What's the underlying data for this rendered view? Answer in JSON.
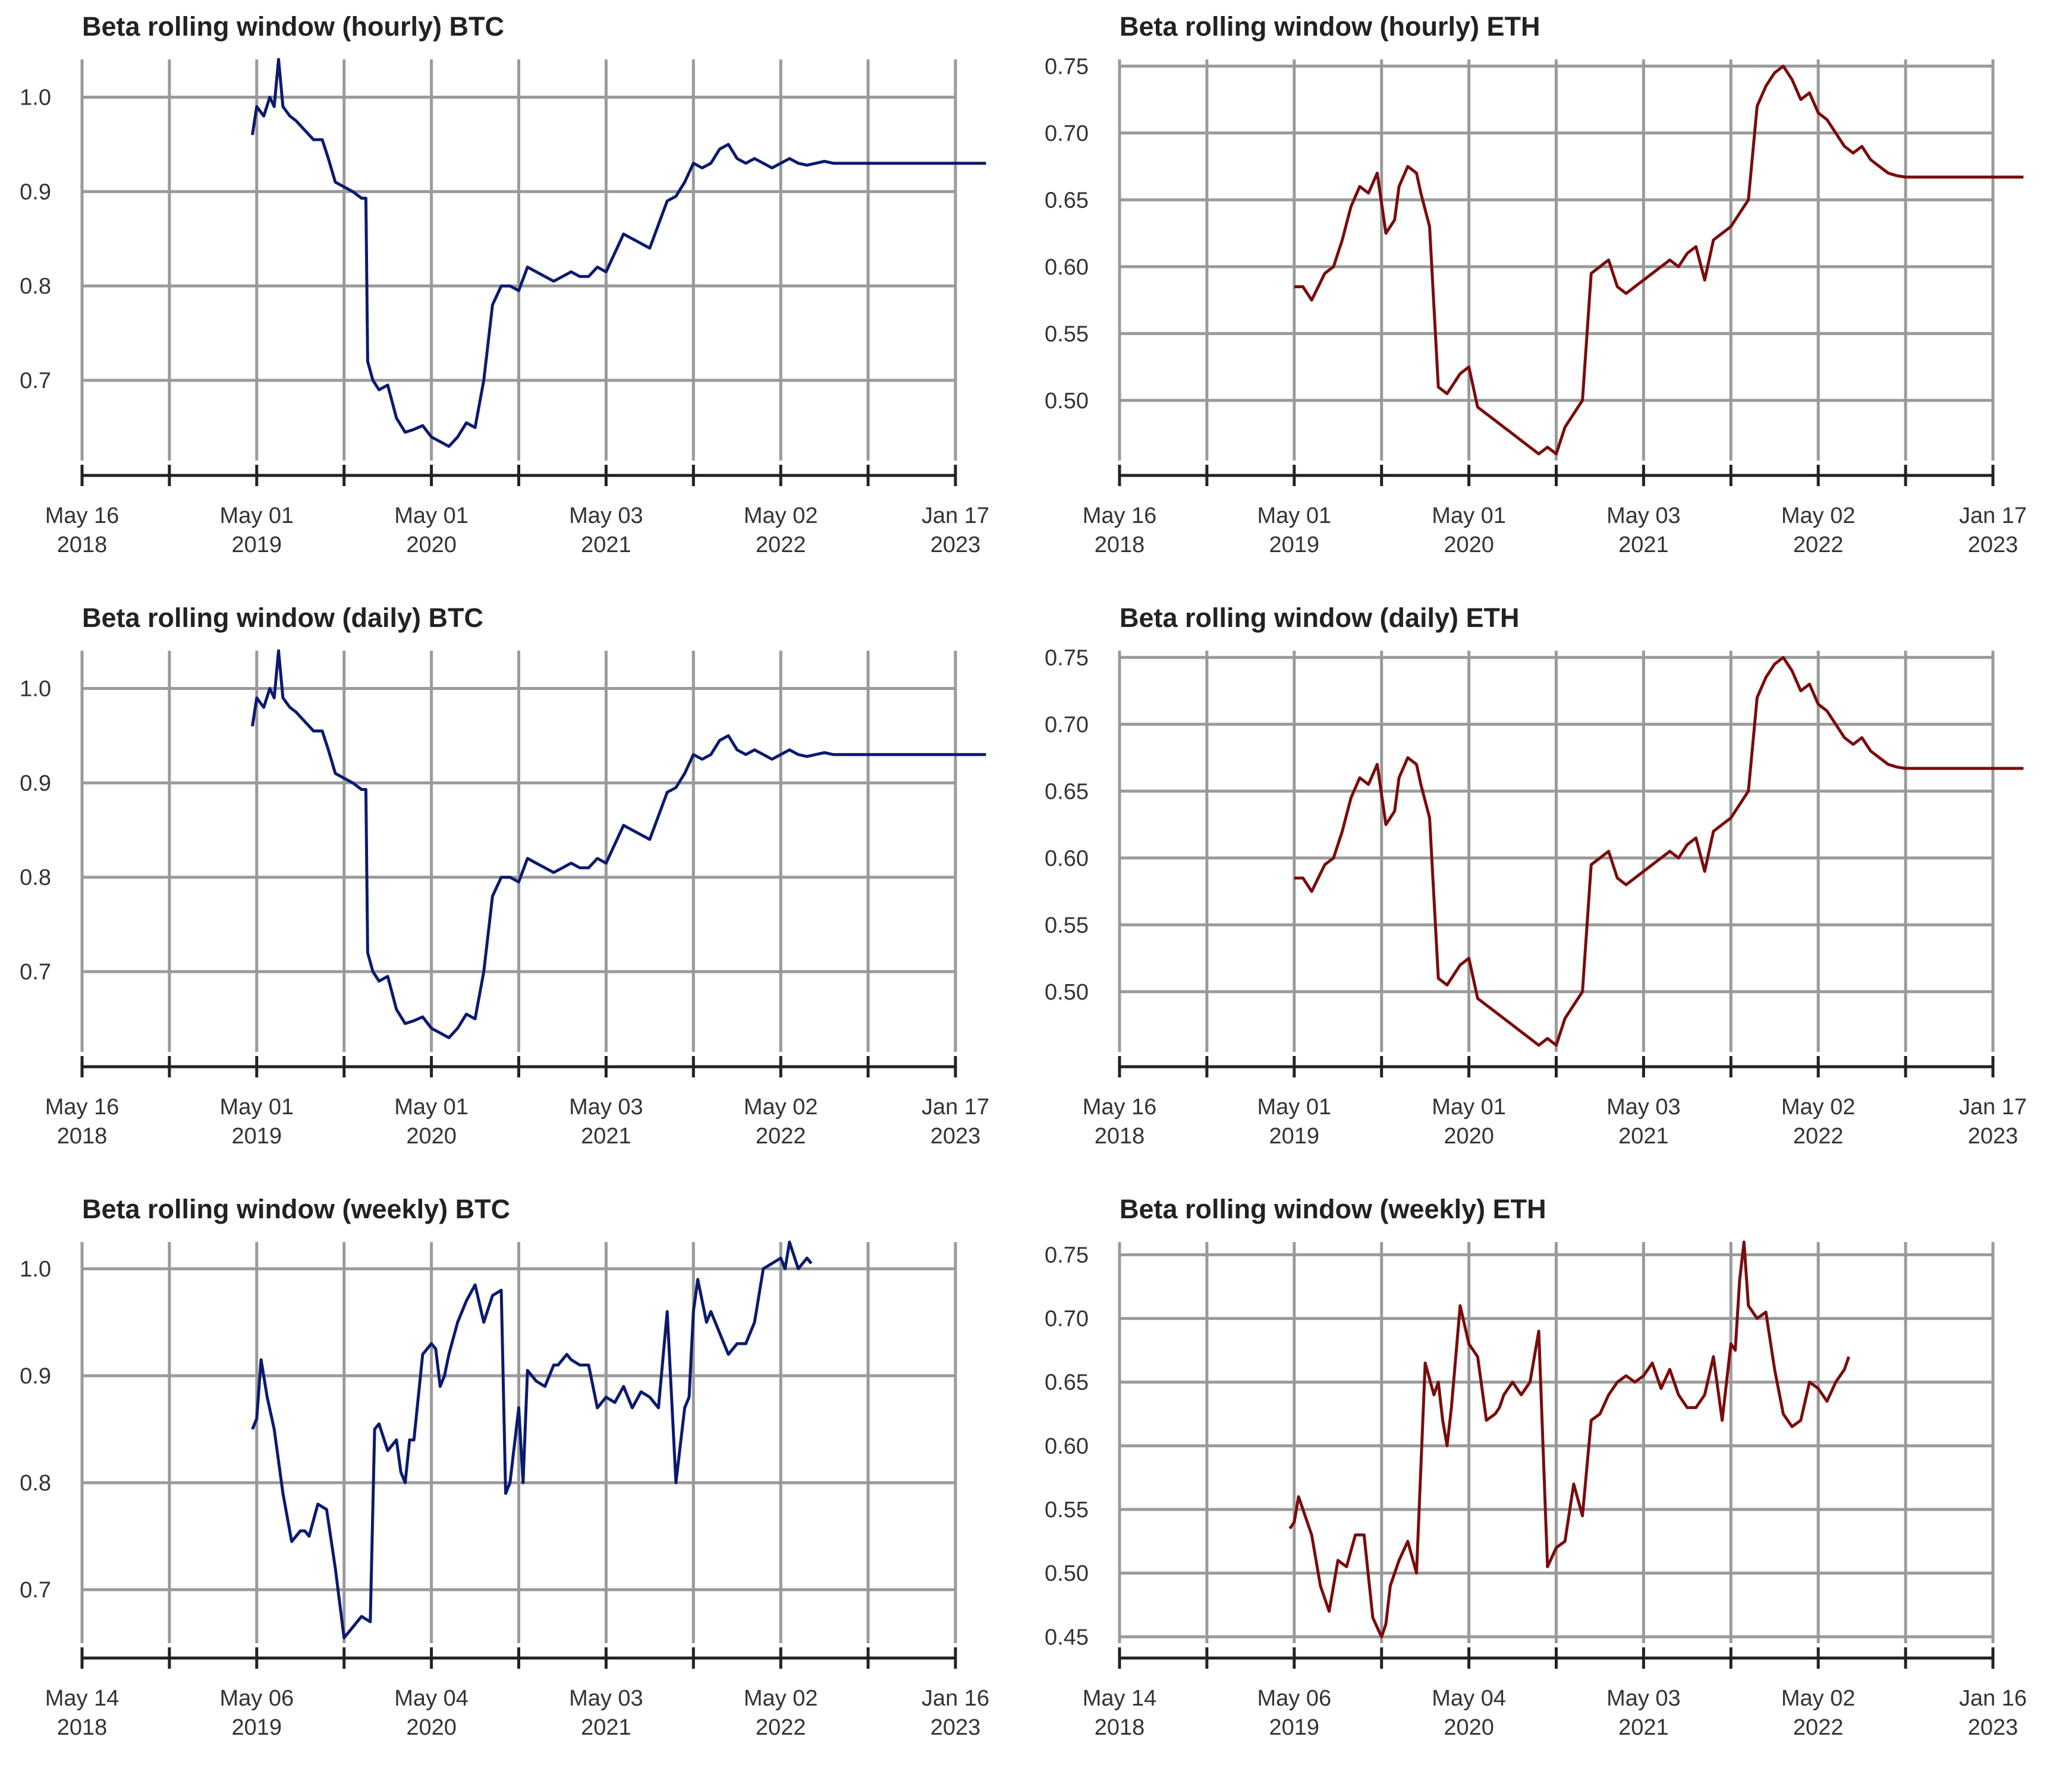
{
  "chart_data": [
    {
      "id": "hourly-btc",
      "type": "line",
      "title": "Beta rolling window (hourly) BTC",
      "color": "#0b1a6e",
      "ylim": [
        0.615,
        1.04
      ],
      "yticks": [
        0.7,
        0.8,
        0.9,
        1.0
      ],
      "ytick_labels": [
        "0.7",
        "0.8",
        "0.9",
        "1.0"
      ],
      "xticks": [
        {
          "label": "May 16",
          "year": "2018"
        },
        {
          "label": "May 01",
          "year": "2019"
        },
        {
          "label": "May 01",
          "year": "2020"
        },
        {
          "label": "May 03",
          "year": "2021"
        },
        {
          "label": "May 02",
          "year": "2022"
        },
        {
          "label": "Jan 17",
          "year": "2023"
        }
      ],
      "x": [
        1.95,
        2.0,
        2.08,
        2.15,
        2.2,
        2.25,
        2.3,
        2.38,
        2.45,
        2.55,
        2.65,
        2.75,
        2.82,
        2.9,
        3.0,
        3.1,
        3.2,
        3.25,
        3.27,
        3.33,
        3.4,
        3.5,
        3.6,
        3.7,
        3.8,
        3.9,
        4.0,
        4.1,
        4.2,
        4.3,
        4.4,
        4.5,
        4.52,
        4.6,
        4.7,
        4.8,
        4.9,
        5.0,
        5.1,
        5.2,
        5.3,
        5.4,
        5.5,
        5.6,
        5.7,
        5.8,
        5.9,
        6.0,
        6.05,
        6.1,
        6.2,
        6.3,
        6.4,
        6.5,
        6.6,
        6.7,
        6.8,
        6.9,
        7.0,
        7.1,
        7.2,
        7.3,
        7.4,
        7.5,
        7.6,
        7.7,
        7.8,
        7.9,
        8.0,
        8.1,
        8.2,
        8.3,
        8.4,
        8.5,
        8.6,
        8.7,
        8.8,
        8.9,
        9.0,
        9.1,
        9.2,
        9.3,
        9.4,
        9.5,
        9.6,
        9.7,
        9.8,
        9.9,
        10.0,
        10.1,
        10.2,
        10.35
      ],
      "y": [
        0.96,
        0.99,
        0.98,
        1.0,
        0.99,
        1.04,
        0.99,
        0.98,
        0.975,
        0.965,
        0.955,
        0.955,
        0.935,
        0.91,
        0.905,
        0.9,
        0.893,
        0.893,
        0.72,
        0.7,
        0.69,
        0.695,
        0.66,
        0.645,
        0.648,
        0.652,
        0.64,
        0.635,
        0.63,
        0.64,
        0.655,
        0.65,
        0.66,
        0.7,
        0.78,
        0.8,
        0.8,
        0.795,
        0.82,
        0.815,
        0.81,
        0.805,
        0.81,
        0.815,
        0.81,
        0.81,
        0.82,
        0.815,
        0.825,
        0.835,
        0.855,
        0.85,
        0.845,
        0.84,
        0.865,
        0.89,
        0.895,
        0.91,
        0.93,
        0.925,
        0.93,
        0.945,
        0.95,
        0.935,
        0.93,
        0.935,
        0.93,
        0.925,
        0.93,
        0.935,
        0.93,
        0.928,
        0.93,
        0.932,
        0.93,
        0.93,
        0.93,
        0.93,
        0.93,
        0.93,
        0.93,
        0.93,
        0.93,
        0.93,
        0.93,
        0.93,
        0.93,
        0.93,
        0.93,
        0.93,
        0.93,
        0.93
      ]
    },
    {
      "id": "hourly-eth",
      "type": "line",
      "title": "Beta rolling window (hourly) ETH",
      "color": "#7a0c0c",
      "ylim": [
        0.455,
        0.755
      ],
      "yticks": [
        0.5,
        0.55,
        0.6,
        0.65,
        0.7,
        0.75
      ],
      "ytick_labels": [
        "0.50",
        "0.55",
        "0.60",
        "0.65",
        "0.70",
        "0.75"
      ],
      "xticks": [
        {
          "label": "May 16",
          "year": "2018"
        },
        {
          "label": "May 01",
          "year": "2019"
        },
        {
          "label": "May 01",
          "year": "2020"
        },
        {
          "label": "May 03",
          "year": "2021"
        },
        {
          "label": "May 02",
          "year": "2022"
        },
        {
          "label": "Jan 17",
          "year": "2023"
        }
      ],
      "x": [
        2.0,
        2.1,
        2.2,
        2.35,
        2.45,
        2.55,
        2.65,
        2.75,
        2.85,
        2.95,
        3.05,
        3.15,
        3.2,
        3.3,
        3.4,
        3.45,
        3.55,
        3.65,
        3.75,
        3.85,
        3.9,
        4.0,
        4.1,
        4.2,
        4.3,
        4.4,
        4.5,
        4.6,
        4.7,
        4.8,
        4.9,
        5.0,
        5.1,
        5.2,
        5.3,
        5.4,
        5.5,
        5.6,
        5.7,
        5.8,
        5.9,
        6.0,
        6.1,
        6.2,
        6.3,
        6.4,
        6.5,
        6.6,
        6.7,
        6.8,
        6.9,
        7.0,
        7.05,
        7.1,
        7.2,
        7.3,
        7.4,
        7.5,
        7.6,
        7.7,
        7.8,
        7.9,
        8.0,
        8.1,
        8.2,
        8.3,
        8.4,
        8.5,
        8.6,
        8.7,
        8.8,
        8.9,
        9.0,
        9.1,
        9.2,
        9.3,
        9.4,
        9.5,
        9.6,
        9.7,
        9.8,
        9.9,
        10.0,
        10.1,
        10.2,
        10.35
      ],
      "y": [
        0.585,
        0.585,
        0.575,
        0.595,
        0.6,
        0.62,
        0.645,
        0.66,
        0.655,
        0.67,
        0.625,
        0.635,
        0.66,
        0.675,
        0.67,
        0.655,
        0.63,
        0.51,
        0.505,
        0.515,
        0.52,
        0.525,
        0.495,
        0.49,
        0.485,
        0.48,
        0.475,
        0.47,
        0.465,
        0.46,
        0.465,
        0.46,
        0.48,
        0.49,
        0.5,
        0.595,
        0.6,
        0.605,
        0.585,
        0.58,
        0.585,
        0.59,
        0.595,
        0.6,
        0.605,
        0.6,
        0.61,
        0.615,
        0.59,
        0.62,
        0.625,
        0.63,
        0.635,
        0.64,
        0.65,
        0.72,
        0.735,
        0.745,
        0.75,
        0.74,
        0.725,
        0.73,
        0.715,
        0.71,
        0.7,
        0.69,
        0.685,
        0.69,
        0.68,
        0.675,
        0.67,
        0.668,
        0.667,
        0.667,
        0.667,
        0.667,
        0.667,
        0.667,
        0.667,
        0.667,
        0.667,
        0.667,
        0.667,
        0.667,
        0.667,
        0.667
      ]
    },
    {
      "id": "daily-btc",
      "type": "line",
      "title": "Beta rolling window (daily) BTC",
      "color": "#0b1a6e",
      "ylim": [
        0.615,
        1.04
      ],
      "yticks": [
        0.7,
        0.8,
        0.9,
        1.0
      ],
      "ytick_labels": [
        "0.7",
        "0.8",
        "0.9",
        "1.0"
      ],
      "xticks": [
        {
          "label": "May 16",
          "year": "2018"
        },
        {
          "label": "May 01",
          "year": "2019"
        },
        {
          "label": "May 01",
          "year": "2020"
        },
        {
          "label": "May 03",
          "year": "2021"
        },
        {
          "label": "May 02",
          "year": "2022"
        },
        {
          "label": "Jan 17",
          "year": "2023"
        }
      ],
      "x": [
        1.95,
        2.0,
        2.08,
        2.15,
        2.2,
        2.25,
        2.3,
        2.38,
        2.45,
        2.55,
        2.65,
        2.75,
        2.82,
        2.9,
        3.0,
        3.1,
        3.2,
        3.25,
        3.27,
        3.33,
        3.4,
        3.5,
        3.6,
        3.7,
        3.8,
        3.9,
        4.0,
        4.1,
        4.2,
        4.3,
        4.4,
        4.5,
        4.52,
        4.6,
        4.7,
        4.8,
        4.9,
        5.0,
        5.1,
        5.2,
        5.3,
        5.4,
        5.5,
        5.6,
        5.7,
        5.8,
        5.9,
        6.0,
        6.05,
        6.1,
        6.2,
        6.3,
        6.4,
        6.5,
        6.6,
        6.7,
        6.8,
        6.9,
        7.0,
        7.1,
        7.2,
        7.3,
        7.4,
        7.5,
        7.6,
        7.7,
        7.8,
        7.9,
        8.0,
        8.1,
        8.2,
        8.3,
        8.4,
        8.5,
        8.6,
        8.7,
        8.8,
        8.9,
        9.0,
        9.1,
        9.2,
        9.3,
        9.4,
        9.5,
        9.6,
        9.7,
        9.8,
        9.9,
        10.0,
        10.1,
        10.2,
        10.35
      ],
      "y": [
        0.96,
        0.99,
        0.98,
        1.0,
        0.99,
        1.04,
        0.99,
        0.98,
        0.975,
        0.965,
        0.955,
        0.955,
        0.935,
        0.91,
        0.905,
        0.9,
        0.893,
        0.893,
        0.72,
        0.7,
        0.69,
        0.695,
        0.66,
        0.645,
        0.648,
        0.652,
        0.64,
        0.635,
        0.63,
        0.64,
        0.655,
        0.65,
        0.66,
        0.7,
        0.78,
        0.8,
        0.8,
        0.795,
        0.82,
        0.815,
        0.81,
        0.805,
        0.81,
        0.815,
        0.81,
        0.81,
        0.82,
        0.815,
        0.825,
        0.835,
        0.855,
        0.85,
        0.845,
        0.84,
        0.865,
        0.89,
        0.895,
        0.91,
        0.93,
        0.925,
        0.93,
        0.945,
        0.95,
        0.935,
        0.93,
        0.935,
        0.93,
        0.925,
        0.93,
        0.935,
        0.93,
        0.928,
        0.93,
        0.932,
        0.93,
        0.93,
        0.93,
        0.93,
        0.93,
        0.93,
        0.93,
        0.93,
        0.93,
        0.93,
        0.93,
        0.93,
        0.93,
        0.93,
        0.93,
        0.93,
        0.93,
        0.93
      ]
    },
    {
      "id": "daily-eth",
      "type": "line",
      "title": "Beta rolling window (daily) ETH",
      "color": "#7a0c0c",
      "ylim": [
        0.455,
        0.755
      ],
      "yticks": [
        0.5,
        0.55,
        0.6,
        0.65,
        0.7,
        0.75
      ],
      "ytick_labels": [
        "0.50",
        "0.55",
        "0.60",
        "0.65",
        "0.70",
        "0.75"
      ],
      "xticks": [
        {
          "label": "May 16",
          "year": "2018"
        },
        {
          "label": "May 01",
          "year": "2019"
        },
        {
          "label": "May 01",
          "year": "2020"
        },
        {
          "label": "May 03",
          "year": "2021"
        },
        {
          "label": "May 02",
          "year": "2022"
        },
        {
          "label": "Jan 17",
          "year": "2023"
        }
      ],
      "x": [
        2.0,
        2.1,
        2.2,
        2.35,
        2.45,
        2.55,
        2.65,
        2.75,
        2.85,
        2.95,
        3.05,
        3.15,
        3.2,
        3.3,
        3.4,
        3.45,
        3.55,
        3.65,
        3.75,
        3.85,
        3.9,
        4.0,
        4.1,
        4.2,
        4.3,
        4.4,
        4.5,
        4.6,
        4.7,
        4.8,
        4.9,
        5.0,
        5.1,
        5.2,
        5.3,
        5.4,
        5.5,
        5.6,
        5.7,
        5.8,
        5.9,
        6.0,
        6.1,
        6.2,
        6.3,
        6.4,
        6.5,
        6.6,
        6.7,
        6.8,
        6.9,
        7.0,
        7.05,
        7.1,
        7.2,
        7.3,
        7.4,
        7.5,
        7.6,
        7.7,
        7.8,
        7.9,
        8.0,
        8.1,
        8.2,
        8.3,
        8.4,
        8.5,
        8.6,
        8.7,
        8.8,
        8.9,
        9.0,
        9.1,
        9.2,
        9.3,
        9.4,
        9.5,
        9.6,
        9.7,
        9.8,
        9.9,
        10.0,
        10.1,
        10.2,
        10.35
      ],
      "y": [
        0.585,
        0.585,
        0.575,
        0.595,
        0.6,
        0.62,
        0.645,
        0.66,
        0.655,
        0.67,
        0.625,
        0.635,
        0.66,
        0.675,
        0.67,
        0.655,
        0.63,
        0.51,
        0.505,
        0.515,
        0.52,
        0.525,
        0.495,
        0.49,
        0.485,
        0.48,
        0.475,
        0.47,
        0.465,
        0.46,
        0.465,
        0.46,
        0.48,
        0.49,
        0.5,
        0.595,
        0.6,
        0.605,
        0.585,
        0.58,
        0.585,
        0.59,
        0.595,
        0.6,
        0.605,
        0.6,
        0.61,
        0.615,
        0.59,
        0.62,
        0.625,
        0.63,
        0.635,
        0.64,
        0.65,
        0.72,
        0.735,
        0.745,
        0.75,
        0.74,
        0.725,
        0.73,
        0.715,
        0.71,
        0.7,
        0.69,
        0.685,
        0.69,
        0.68,
        0.675,
        0.67,
        0.668,
        0.667,
        0.667,
        0.667,
        0.667,
        0.667,
        0.667,
        0.667,
        0.667,
        0.667,
        0.667,
        0.667,
        0.667,
        0.667,
        0.667
      ]
    },
    {
      "id": "weekly-btc",
      "type": "line",
      "title": "Beta rolling window (weekly) BTC",
      "color": "#0b1a6e",
      "ylim": [
        0.65,
        1.025
      ],
      "yticks": [
        0.7,
        0.8,
        0.9,
        1.0
      ],
      "ytick_labels": [
        "0.7",
        "0.8",
        "0.9",
        "1.0"
      ],
      "xticks": [
        {
          "label": "May 14",
          "year": "2018"
        },
        {
          "label": "May 06",
          "year": "2019"
        },
        {
          "label": "May 04",
          "year": "2020"
        },
        {
          "label": "May 03",
          "year": "2021"
        },
        {
          "label": "May 02",
          "year": "2022"
        },
        {
          "label": "Jan 16",
          "year": "2023"
        }
      ],
      "x": [
        1.95,
        2.0,
        2.05,
        2.12,
        2.2,
        2.3,
        2.4,
        2.5,
        2.55,
        2.6,
        2.7,
        2.8,
        2.9,
        3.0,
        3.1,
        3.2,
        3.3,
        3.35,
        3.4,
        3.5,
        3.6,
        3.65,
        3.7,
        3.75,
        3.8,
        3.9,
        4.0,
        4.05,
        4.1,
        4.15,
        4.2,
        4.3,
        4.4,
        4.5,
        4.6,
        4.7,
        4.8,
        4.85,
        4.9,
        5.0,
        5.05,
        5.1,
        5.2,
        5.3,
        5.4,
        5.45,
        5.5,
        5.55,
        5.6,
        5.7,
        5.8,
        5.9,
        6.0,
        6.1,
        6.2,
        6.3,
        6.4,
        6.5,
        6.6,
        6.7,
        6.8,
        6.9,
        6.95,
        7.0,
        7.05,
        7.1,
        7.15,
        7.2,
        7.3,
        7.4,
        7.5,
        7.6,
        7.7,
        7.8,
        7.9,
        8.0,
        8.05,
        8.1,
        8.2,
        8.3,
        8.35
      ],
      "y": [
        0.85,
        0.86,
        0.915,
        0.88,
        0.85,
        0.79,
        0.745,
        0.755,
        0.755,
        0.75,
        0.78,
        0.775,
        0.72,
        0.655,
        0.665,
        0.675,
        0.67,
        0.85,
        0.855,
        0.83,
        0.84,
        0.81,
        0.8,
        0.84,
        0.84,
        0.92,
        0.93,
        0.925,
        0.89,
        0.9,
        0.92,
        0.95,
        0.97,
        0.985,
        0.95,
        0.975,
        0.98,
        0.79,
        0.8,
        0.87,
        0.8,
        0.905,
        0.895,
        0.89,
        0.91,
        0.91,
        0.915,
        0.92,
        0.915,
        0.91,
        0.91,
        0.87,
        0.88,
        0.875,
        0.89,
        0.87,
        0.885,
        0.88,
        0.87,
        0.96,
        0.8,
        0.87,
        0.88,
        0.96,
        0.99,
        0.97,
        0.95,
        0.96,
        0.94,
        0.92,
        0.93,
        0.93,
        0.95,
        1.0,
        1.005,
        1.01,
        1.0,
        1.025,
        1.0,
        1.01,
        1.005
      ]
    },
    {
      "id": "weekly-eth",
      "type": "line",
      "title": "Beta rolling window (weekly) ETH",
      "color": "#7a0c0c",
      "ylim": [
        0.445,
        0.76
      ],
      "yticks": [
        0.45,
        0.5,
        0.55,
        0.6,
        0.65,
        0.7,
        0.75
      ],
      "ytick_labels": [
        "0.45",
        "0.50",
        "0.55",
        "0.60",
        "0.65",
        "0.70",
        "0.75"
      ],
      "xticks": [
        {
          "label": "May 14",
          "year": "2018"
        },
        {
          "label": "May 06",
          "year": "2019"
        },
        {
          "label": "May 04",
          "year": "2020"
        },
        {
          "label": "May 03",
          "year": "2021"
        },
        {
          "label": "May 02",
          "year": "2022"
        },
        {
          "label": "Jan 16",
          "year": "2023"
        }
      ],
      "x": [
        1.95,
        2.0,
        2.05,
        2.1,
        2.15,
        2.2,
        2.3,
        2.4,
        2.5,
        2.6,
        2.7,
        2.8,
        2.9,
        3.0,
        3.05,
        3.1,
        3.2,
        3.3,
        3.4,
        3.5,
        3.6,
        3.65,
        3.7,
        3.75,
        3.8,
        3.9,
        4.0,
        4.1,
        4.2,
        4.3,
        4.35,
        4.4,
        4.5,
        4.6,
        4.7,
        4.8,
        4.9,
        5.0,
        5.1,
        5.2,
        5.3,
        5.4,
        5.5,
        5.6,
        5.65,
        5.7,
        5.8,
        5.9,
        6.0,
        6.1,
        6.2,
        6.3,
        6.4,
        6.5,
        6.6,
        6.7,
        6.8,
        6.9,
        7.0,
        7.05,
        7.1,
        7.15,
        7.2,
        7.3,
        7.4,
        7.5,
        7.6,
        7.7,
        7.8,
        7.9,
        8.0,
        8.05,
        8.1,
        8.2,
        8.3,
        8.35
      ],
      "y": [
        0.535,
        0.54,
        0.56,
        0.55,
        0.54,
        0.53,
        0.49,
        0.47,
        0.51,
        0.505,
        0.53,
        0.53,
        0.465,
        0.45,
        0.46,
        0.49,
        0.51,
        0.525,
        0.5,
        0.665,
        0.64,
        0.65,
        0.62,
        0.6,
        0.63,
        0.71,
        0.68,
        0.67,
        0.62,
        0.625,
        0.63,
        0.64,
        0.65,
        0.64,
        0.65,
        0.69,
        0.505,
        0.52,
        0.525,
        0.57,
        0.545,
        0.62,
        0.625,
        0.64,
        0.645,
        0.65,
        0.655,
        0.65,
        0.655,
        0.665,
        0.645,
        0.66,
        0.64,
        0.63,
        0.63,
        0.64,
        0.67,
        0.62,
        0.68,
        0.675,
        0.73,
        0.76,
        0.71,
        0.7,
        0.705,
        0.66,
        0.625,
        0.615,
        0.62,
        0.65,
        0.645,
        0.64,
        0.635,
        0.65,
        0.66,
        0.67
      ]
    }
  ]
}
